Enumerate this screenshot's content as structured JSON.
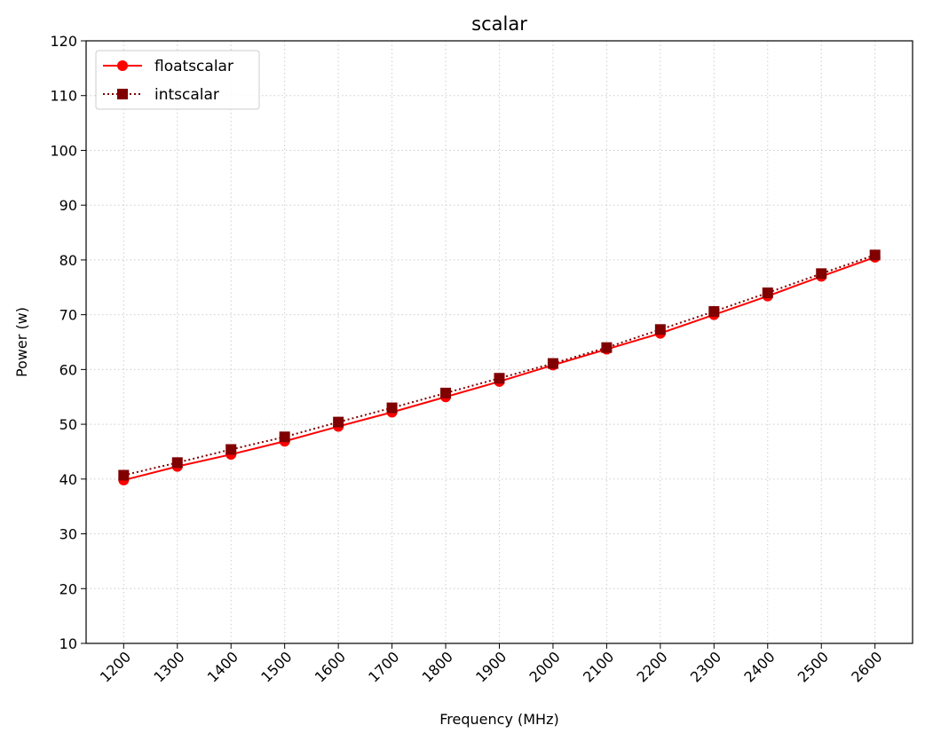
{
  "chart_data": {
    "type": "line",
    "title": "scalar",
    "xlabel": "Frequency (MHz)",
    "ylabel": "Power (w)",
    "x": [
      1200,
      1300,
      1400,
      1500,
      1600,
      1700,
      1800,
      1900,
      2000,
      2100,
      2200,
      2300,
      2400,
      2500,
      2600
    ],
    "x_tick_labels": [
      "1200",
      "1300",
      "1400",
      "1500",
      "1600",
      "1700",
      "1800",
      "1900",
      "2000",
      "2100",
      "2200",
      "2300",
      "2400",
      "2500",
      "2600"
    ],
    "ylim": [
      10,
      120
    ],
    "y_ticks": [
      10,
      20,
      30,
      40,
      50,
      60,
      70,
      80,
      90,
      100,
      110,
      120
    ],
    "grid": true,
    "legend_position": "top-left",
    "series": [
      {
        "name": "floatscalar",
        "color": "#ff0000",
        "line_style": "solid",
        "marker": "circle",
        "values": [
          39.8,
          42.3,
          44.5,
          46.9,
          49.6,
          52.2,
          55.0,
          57.8,
          60.8,
          63.7,
          66.6,
          70.0,
          73.4,
          77.0,
          80.5
        ]
      },
      {
        "name": "intscalar",
        "color": "#800000",
        "line_style": "dotted",
        "marker": "square",
        "values": [
          40.7,
          43.0,
          45.4,
          47.7,
          50.4,
          53.0,
          55.7,
          58.4,
          61.1,
          64.0,
          67.3,
          70.6,
          74.0,
          77.5,
          80.9
        ]
      }
    ]
  }
}
